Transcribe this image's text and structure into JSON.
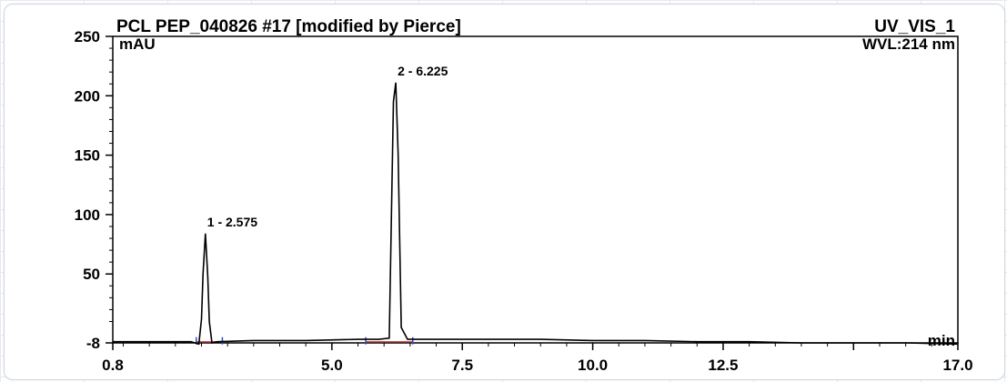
{
  "chart_data": {
    "type": "line",
    "title": "PCL PEP_040826 #17 [modified by Pierce]",
    "channel": "UV_VIS_1",
    "wavelength": "WVL:214 nm",
    "ylabel": "mAU",
    "xlabel": "min",
    "xlim": [
      0.8,
      17.0
    ],
    "ylim": [
      -8,
      250
    ],
    "x_ticks": [
      0.8,
      5.0,
      7.5,
      10.0,
      12.5,
      17.0
    ],
    "x_tick_labels": [
      "0.8",
      "5.0",
      "7.5",
      "10.0",
      "12.5",
      "17.0"
    ],
    "y_ticks": [
      -8,
      50,
      100,
      150,
      200,
      250
    ],
    "y_tick_labels": [
      "-8",
      "50",
      "100",
      "150",
      "200",
      "250"
    ],
    "grid": false,
    "peaks": [
      {
        "label": "1 - 2.575",
        "rt": 2.575,
        "height": 84
      },
      {
        "label": "2 - 6.225",
        "rt": 6.225,
        "height": 211
      }
    ],
    "series": [
      {
        "x": [
          0.8,
          1.5,
          2.3,
          2.45,
          2.5,
          2.53,
          2.575,
          2.62,
          2.65,
          2.7,
          2.8,
          3.5,
          4.5,
          5.5,
          5.9,
          6.1,
          6.18,
          6.225,
          6.27,
          6.33,
          6.45,
          7.0,
          8.0,
          9.0,
          10.0,
          11.0,
          12.0,
          13.0,
          14.0,
          15.0,
          16.0,
          17.0
        ],
        "y": [
          -7,
          -7,
          -7,
          -9,
          12,
          50,
          84,
          48,
          10,
          -8,
          -7,
          -6,
          -6,
          -5,
          -5,
          -4,
          195,
          211,
          150,
          5,
          -5,
          -5,
          -5,
          -5,
          -6,
          -6,
          -7,
          -7,
          -8,
          -8,
          -8,
          -9
        ]
      }
    ]
  }
}
